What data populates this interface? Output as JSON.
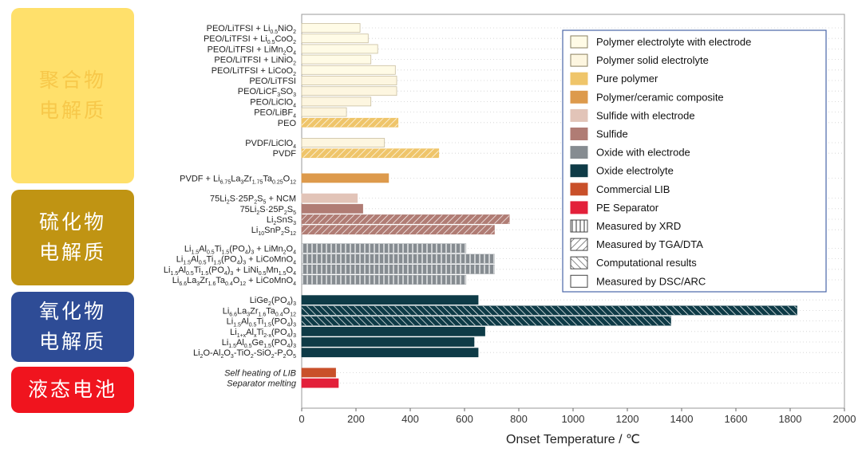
{
  "groups": [
    {
      "label": "聚合物\n电解质",
      "color": "#FFE06B",
      "text_color": "#F7C84A"
    },
    {
      "label": "硫化物\n电解质",
      "color": "#C09413",
      "text_color": "#FFFFFF"
    },
    {
      "label": "氧化物\n电解质",
      "color": "#2E4C96",
      "text_color": "#FFFFFF"
    },
    {
      "label": "液态电池",
      "color": "#F0141E",
      "text_color": "#FFFFFF"
    }
  ],
  "chart_data": {
    "type": "bar",
    "orientation": "horizontal",
    "xlabel": "Onset Temperature / ℃",
    "xlim": [
      0,
      2000
    ],
    "xticks": [
      0,
      200,
      400,
      600,
      800,
      1000,
      1200,
      1400,
      1600,
      1800,
      2000
    ],
    "grid": "horizontal dotted lines per row",
    "legend_position": "top-right",
    "categories": [
      {
        "base": "PEO/LiTFSI + Li",
        "sub": "0.5",
        "rest": "NiO",
        "sub2": "2",
        "value": 215,
        "cls": "pwe",
        "pat": "dsc"
      },
      {
        "base": "PEO/LiTFSI + Li",
        "sub": "0.5",
        "rest": "CoO",
        "sub2": "2",
        "value": 245,
        "cls": "pwe",
        "pat": "dsc"
      },
      {
        "base": "PEO/LiTFSI + LiMn",
        "sub": "2",
        "rest": "O",
        "sub2": "4",
        "value": 280,
        "cls": "pwe",
        "pat": "dsc"
      },
      {
        "base": "PEO/LiTFSI + LiNiO",
        "sub": "2",
        "rest": "",
        "sub2": "",
        "value": 255,
        "cls": "pwe",
        "pat": "dsc"
      },
      {
        "base": "PEO/LiTFSI + LiCoO",
        "sub": "2",
        "rest": "",
        "sub2": "",
        "value": 345,
        "cls": "pwe",
        "pat": "dsc"
      },
      {
        "base": "PEO/LiTFSI",
        "sub": "",
        "rest": "",
        "sub2": "",
        "value": 350,
        "cls": "pse",
        "pat": "dsc"
      },
      {
        "base": "PEO/LiCF",
        "sub": "3",
        "rest": "SO",
        "sub2": "3",
        "value": 350,
        "cls": "pse",
        "pat": "dsc"
      },
      {
        "base": "PEO/LiClO",
        "sub": "4",
        "rest": "",
        "sub2": "",
        "value": 255,
        "cls": "pse",
        "pat": "dsc"
      },
      {
        "base": "PEO/LiBF",
        "sub": "4",
        "rest": "",
        "sub2": "",
        "value": 165,
        "cls": "pse",
        "pat": "dsc"
      },
      {
        "base": "PEO",
        "sub": "",
        "rest": "",
        "sub2": "",
        "value": 355,
        "cls": "pp",
        "pat": "tga"
      },
      {
        "base": "PVDF/LiClO",
        "sub": "4",
        "rest": "",
        "sub2": "",
        "value": 305,
        "cls": "pse",
        "pat": "dsc"
      },
      {
        "base": "PVDF",
        "sub": "",
        "rest": "",
        "sub2": "",
        "value": 505,
        "cls": "pp",
        "pat": "tga"
      },
      {
        "base": "PVDF + Li",
        "sub": "6.75",
        "rest": "La",
        "sub2": "3",
        "tail": "Zr",
        "sub3": "1.75",
        "tail2": "Ta",
        "sub4": "0.25",
        "tail3": "O",
        "sub5": "12",
        "value": 320,
        "cls": "pcc",
        "pat": "dsc"
      },
      {
        "base": "75Li",
        "sub": "2",
        "rest": "S·25P",
        "sub2": "2",
        "tail": "S",
        "sub3": "5",
        "tail2": " + NCM",
        "value": 205,
        "cls": "swe",
        "pat": "dsc"
      },
      {
        "base": "75Li",
        "sub": "2",
        "rest": "S·25P",
        "sub2": "2",
        "tail": "S",
        "sub3": "5",
        "value": 225,
        "cls": "sul",
        "pat": "dsc"
      },
      {
        "base": "Li",
        "sub": "2",
        "rest": "SnS",
        "sub2": "3",
        "value": 765,
        "cls": "sul",
        "pat": "tga"
      },
      {
        "base": "Li",
        "sub": "10",
        "rest": "SnP",
        "sub2": "2",
        "tail": "S",
        "sub3": "12",
        "value": 710,
        "cls": "sul",
        "pat": "tga"
      },
      {
        "base": "Li",
        "sub": "1.5",
        "rest": "Al",
        "sub2": "0.5",
        "tail": "Ti",
        "sub3": "1.5",
        "tail2": "(PO",
        "sub4": "4",
        "tail3": ")",
        "sub5": "3",
        "tail4": " + LiMn",
        "sub6": "2",
        "tail5": "O",
        "sub7": "4",
        "value": 605,
        "cls": "owe",
        "pat": "xrd"
      },
      {
        "base": "Li",
        "sub": "1.5",
        "rest": "Al",
        "sub2": "0.5",
        "tail": "Ti",
        "sub3": "1.5",
        "tail2": "(PO",
        "sub4": "4",
        "tail3": ")",
        "sub5": "3",
        "tail4": " + LiCoMnO",
        "sub6": "4",
        "value": 710,
        "cls": "owe",
        "pat": "xrd"
      },
      {
        "base": "Li",
        "sub": "1.5",
        "rest": "Al",
        "sub2": "0.5",
        "tail": "Ti",
        "sub3": "1.5",
        "tail2": "(PO",
        "sub4": "4",
        "tail3": ")",
        "sub5": "3",
        "tail4": " + LiNi",
        "sub6": "0.5",
        "tail5": "Mn",
        "sub7": "1.5",
        "tail6": "O",
        "sub8": "4",
        "value": 710,
        "cls": "owe",
        "pat": "xrd"
      },
      {
        "base": "Li",
        "sub": "6.6",
        "rest": "La",
        "sub2": "3",
        "tail": "Zr",
        "sub3": "1.6",
        "tail2": "Ta",
        "sub4": "0.4",
        "tail3": "O",
        "sub5": "12",
        "tail4": " + LiCoMnO",
        "sub6": "4",
        "value": 605,
        "cls": "owe",
        "pat": "xrd"
      },
      {
        "base": "LiGe",
        "sub": "2",
        "rest": "(PO",
        "sub2": "4",
        "tail": ")",
        "sub3": "3",
        "value": 650,
        "cls": "oe",
        "pat": "dsc"
      },
      {
        "base": "Li",
        "sub": "6.6",
        "rest": "La",
        "sub2": "3",
        "tail": "Zr",
        "sub3": "1.6",
        "tail2": "Ta",
        "sub4": "0.4",
        "tail3": "O",
        "sub5": "12",
        "value": 1825,
        "cls": "oe",
        "pat": "comp"
      },
      {
        "base": "Li",
        "sub": "1.5",
        "rest": "Al",
        "sub2": "0.5",
        "tail": "Ti",
        "sub3": "1.5",
        "tail2": "(PO",
        "sub4": "4",
        "tail3": ")",
        "sub5": "3",
        "value": 1360,
        "cls": "oe",
        "pat": "comp"
      },
      {
        "base": "Li",
        "sub": "1+x",
        "rest": "Al",
        "sub2": "x",
        "tail": "Ti",
        "sub3": "2-x",
        "tail2": "(PO",
        "sub4": "4",
        "tail3": ")",
        "sub5": "3",
        "value": 675,
        "cls": "oe",
        "pat": "dsc"
      },
      {
        "base": "Li",
        "sub": "1.5",
        "rest": "Al",
        "sub2": "0.5",
        "tail": "Ge",
        "sub3": "1.5",
        "tail2": "(PO",
        "sub4": "4",
        "tail3": ")",
        "sub5": "3",
        "value": 635,
        "cls": "oe",
        "pat": "dsc"
      },
      {
        "base": "Li",
        "sub": "2",
        "rest": "O-Al",
        "sub2": "2",
        "tail": "O",
        "sub3": "3",
        "tail2": "-TiO",
        "sub4": "2",
        "tail3": "-SiO",
        "sub5": "2",
        "tail4": "-P",
        "sub6": "2",
        "tail5": "O",
        "sub7": "5",
        "value": 650,
        "cls": "oe",
        "pat": "dsc"
      },
      {
        "base": "Self heating of LIB",
        "italic": true,
        "value": 125,
        "cls": "clib",
        "pat": "dsc"
      },
      {
        "base": "Separator melting",
        "italic": true,
        "value": 135,
        "cls": "pes",
        "pat": "dsc"
      }
    ],
    "legend": [
      {
        "label": "Polymer electrolyte with electrode",
        "swatch": "pwe"
      },
      {
        "label": "Polymer solid electrolyte",
        "swatch": "pse"
      },
      {
        "label": "Pure polymer",
        "swatch": "pp"
      },
      {
        "label": "Polymer/ceramic composite",
        "swatch": "pcc"
      },
      {
        "label": "Sulfide with electrode",
        "swatch": "swe"
      },
      {
        "label": "Sulfide",
        "swatch": "sul"
      },
      {
        "label": "Oxide with electrode",
        "swatch": "owe"
      },
      {
        "label": "Oxide electrolyte",
        "swatch": "oe"
      },
      {
        "label": "Commercial LIB",
        "swatch": "clib"
      },
      {
        "label": "PE Separator",
        "swatch": "pes"
      },
      {
        "label": "Measured by  XRD",
        "swatch": "xrd"
      },
      {
        "label": "Measured by  TGA/DTA",
        "swatch": "tga"
      },
      {
        "label": "Computational results",
        "swatch": "comp"
      },
      {
        "label": "Measured by  DSC/ARC",
        "swatch": "dsc"
      }
    ],
    "colors": {
      "pwe": "#FFFBE6",
      "pse": "#FDF6E0",
      "pp": "#EFC56A",
      "pcc": "#DD9A4C",
      "swe": "#E2C4B8",
      "sul": "#B07C74",
      "owe": "#868C91",
      "oe": "#0E3B47",
      "clib": "#C9502A",
      "pes": "#E3203A"
    }
  }
}
